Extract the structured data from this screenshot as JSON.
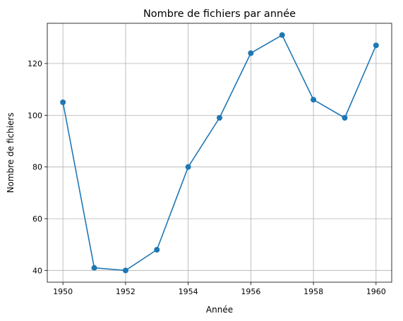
{
  "chart_data": {
    "type": "line",
    "title": "Nombre de fichiers par année",
    "xlabel": "Année",
    "ylabel": "Nombre de fichiers",
    "x": [
      1950,
      1951,
      1952,
      1953,
      1954,
      1955,
      1956,
      1957,
      1958,
      1959,
      1960
    ],
    "series": [
      {
        "values": [
          105,
          41,
          40,
          48,
          80,
          99,
          124,
          131,
          106,
          99,
          127
        ],
        "color": "#1f77b4",
        "marker": "circle"
      }
    ],
    "xlim": [
      1949.5,
      1960.5
    ],
    "ylim": [
      35.45,
      135.55
    ],
    "xticks": [
      1950,
      1952,
      1954,
      1956,
      1958,
      1960
    ],
    "yticks": [
      40,
      60,
      80,
      100,
      120
    ],
    "grid": true,
    "legend": false
  }
}
